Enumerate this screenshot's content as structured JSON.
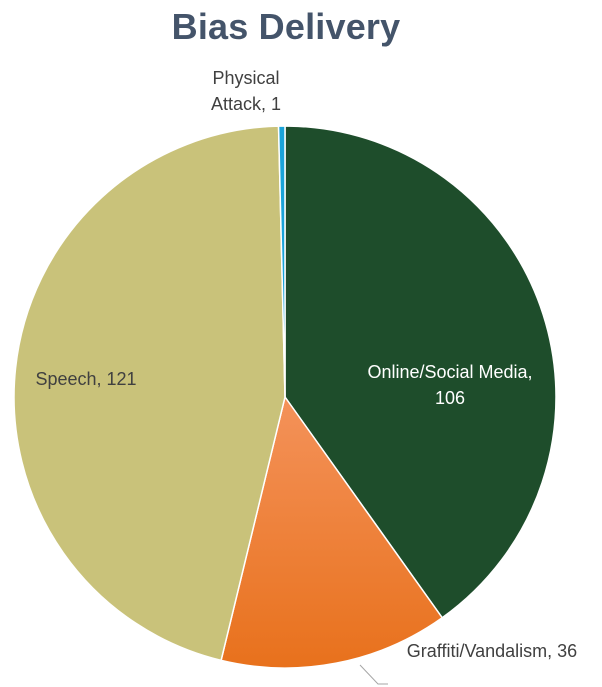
{
  "chart_data": {
    "type": "pie",
    "title": "Bias Delivery",
    "start_angle_deg": 0,
    "direction": "clockwise",
    "slices": [
      {
        "label": "Online/Social Media",
        "value": 106,
        "color": "#1e4d2b",
        "gradient_to": "#1e4d2b",
        "label_color": "#ffffff",
        "label_lines": [
          "Online/Social Media,",
          "106"
        ]
      },
      {
        "label": "Graffiti/Vandalism",
        "value": 36,
        "color": "#f4925a",
        "gradient_to": "#e8711c",
        "label_color": "#404040",
        "label_lines": [
          "Graffiti/Vandalism, 36"
        ]
      },
      {
        "label": "Speech",
        "value": 121,
        "color": "#c9c27a",
        "gradient_to": "#c9c27a",
        "label_color": "#404040",
        "label_lines": [
          "Speech, 121"
        ]
      },
      {
        "label": "Physical Attack",
        "value": 1,
        "color": "#1aa3d9",
        "gradient_to": "#1aa3d9",
        "label_color": "#404040",
        "label_lines": [
          "Physical",
          "Attack, 1"
        ]
      }
    ],
    "legend": "none"
  }
}
